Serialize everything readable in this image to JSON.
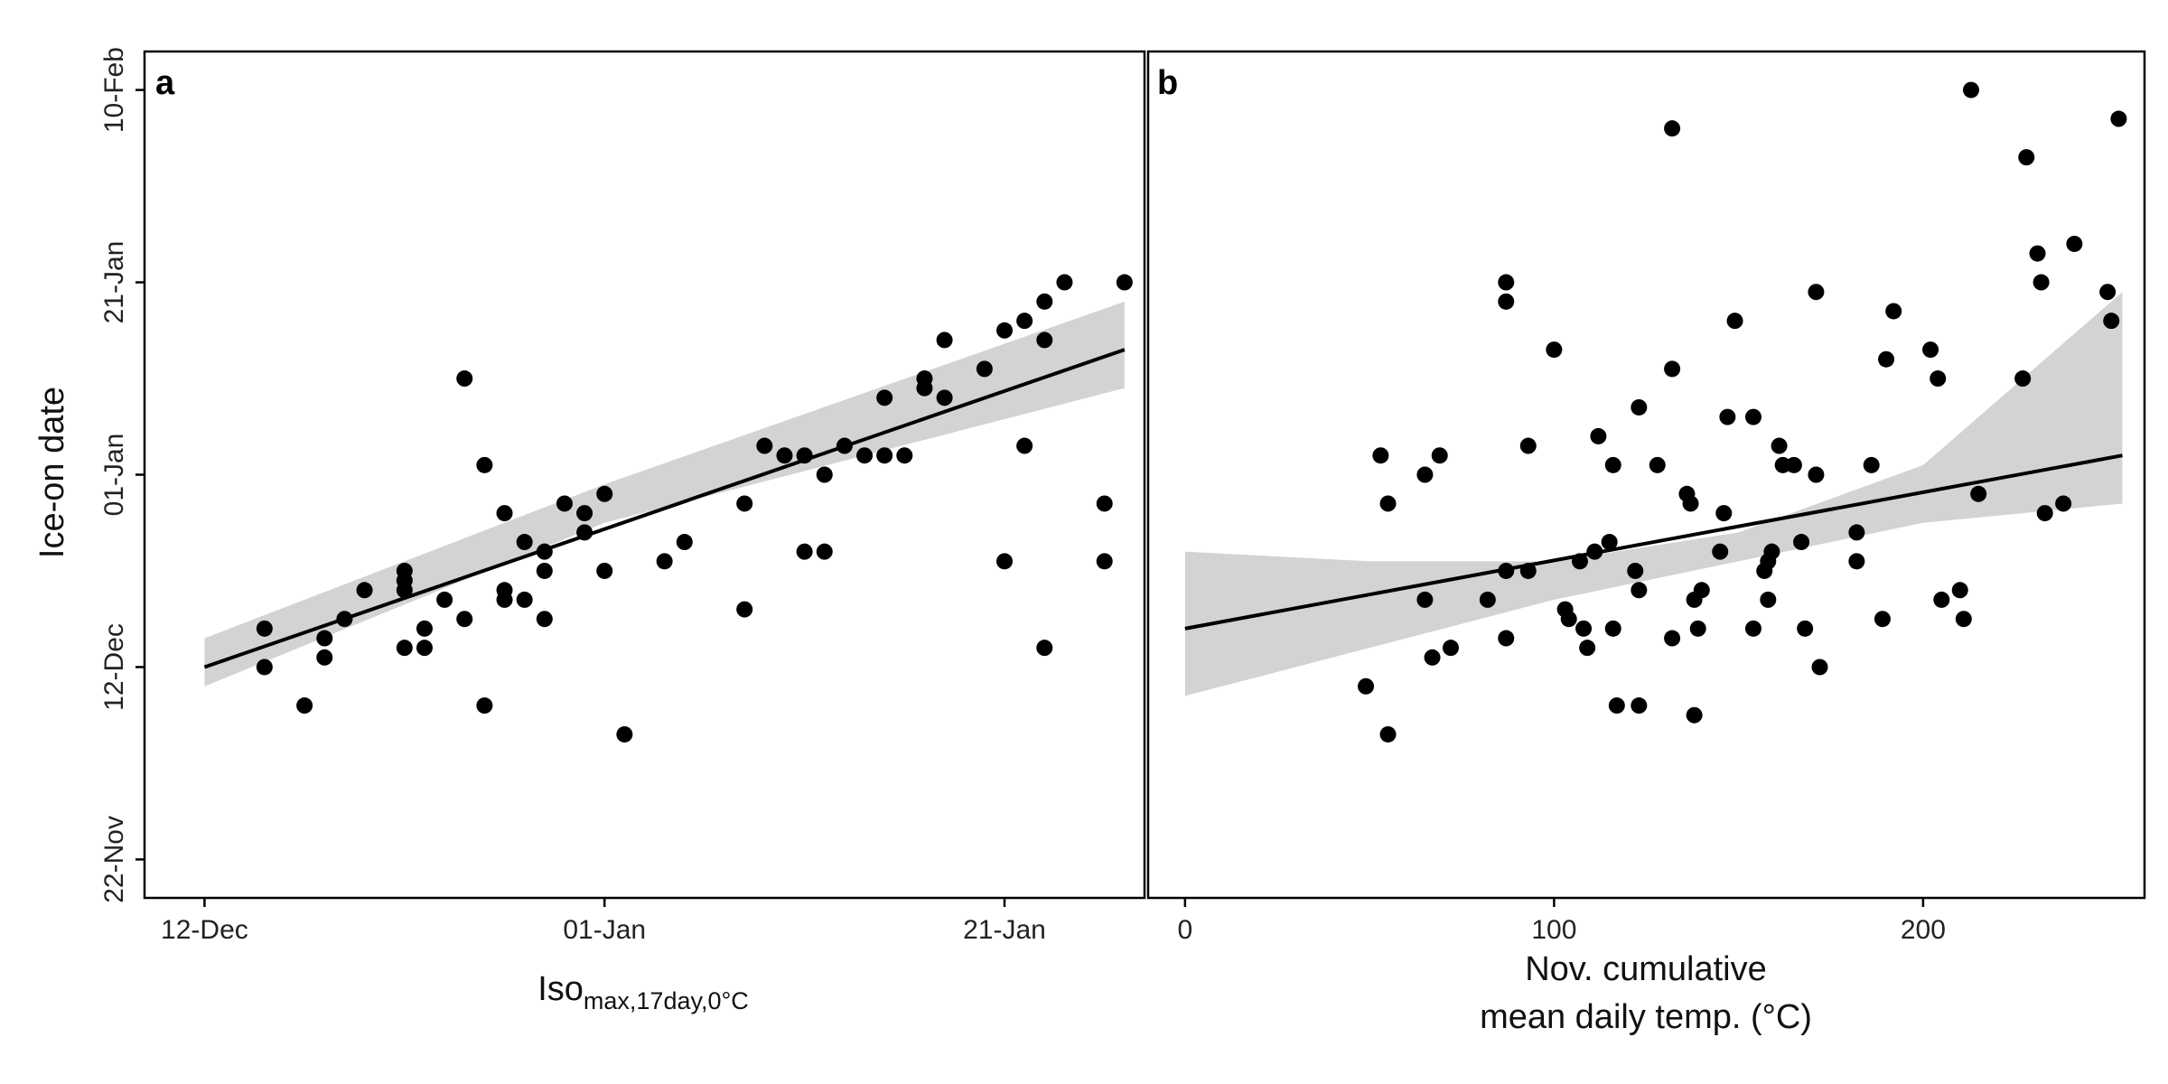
{
  "colors": {
    "points": "#000000",
    "fit_line": "#000000",
    "ci_band": "#d3d3d3",
    "frame": "#000000"
  },
  "shared_y_axis": {
    "label": "Ice-on date",
    "ticks": [
      {
        "value": -20,
        "label": "22-Nov"
      },
      {
        "value": 0,
        "label": "12-Dec"
      },
      {
        "value": 20,
        "label": "01-Jan"
      },
      {
        "value": 40,
        "label": "21-Jan"
      },
      {
        "value": 60,
        "label": "10-Feb"
      }
    ],
    "range": [
      -24,
      64
    ]
  },
  "chart_data": [
    {
      "panel": "a",
      "type": "scatter",
      "xlabel_main": "Iso",
      "xlabel_sub": "max,17day,0°C",
      "x_unit_note": "date",
      "xlim": [
        "2019-12-09",
        "2020-01-28"
      ],
      "ylim": [
        "2019-11-18",
        "2020-02-14"
      ],
      "x_ticks": [
        {
          "value": "2019-12-12",
          "label": "12-Dec"
        },
        {
          "value": "2020-01-01",
          "label": "01-Jan"
        },
        {
          "value": "2020-01-21",
          "label": "21-Jan"
        }
      ],
      "points": [
        {
          "x": "2019-12-15",
          "y": "2019-12-16"
        },
        {
          "x": "2019-12-15",
          "y": "2019-12-12"
        },
        {
          "x": "2019-12-17",
          "y": "2019-12-08"
        },
        {
          "x": "2019-12-18",
          "y": "2019-12-15"
        },
        {
          "x": "2019-12-18",
          "y": "2019-12-13"
        },
        {
          "x": "2019-12-19",
          "y": "2019-12-17"
        },
        {
          "x": "2019-12-20",
          "y": "2019-12-20"
        },
        {
          "x": "2019-12-22",
          "y": "2019-12-21"
        },
        {
          "x": "2019-12-22",
          "y": "2019-12-22"
        },
        {
          "x": "2019-12-22",
          "y": "2019-12-20"
        },
        {
          "x": "2019-12-22",
          "y": "2019-12-14"
        },
        {
          "x": "2019-12-23",
          "y": "2019-12-16"
        },
        {
          "x": "2019-12-23",
          "y": "2019-12-14"
        },
        {
          "x": "2019-12-24",
          "y": "2019-12-19"
        },
        {
          "x": "2019-12-25",
          "y": "2020-01-11"
        },
        {
          "x": "2019-12-25",
          "y": "2019-12-17"
        },
        {
          "x": "2019-12-26",
          "y": "2020-01-02"
        },
        {
          "x": "2019-12-26",
          "y": "2019-12-08"
        },
        {
          "x": "2019-12-27",
          "y": "2019-12-28"
        },
        {
          "x": "2019-12-27",
          "y": "2019-12-20"
        },
        {
          "x": "2019-12-27",
          "y": "2019-12-19"
        },
        {
          "x": "2019-12-28",
          "y": "2019-12-25"
        },
        {
          "x": "2019-12-28",
          "y": "2019-12-19"
        },
        {
          "x": "2019-12-29",
          "y": "2019-12-24"
        },
        {
          "x": "2019-12-29",
          "y": "2019-12-22"
        },
        {
          "x": "2019-12-29",
          "y": "2019-12-17"
        },
        {
          "x": "2019-12-30",
          "y": "2019-12-29"
        },
        {
          "x": "2019-12-31",
          "y": "2019-12-28"
        },
        {
          "x": "2019-12-31",
          "y": "2019-12-26"
        },
        {
          "x": "2020-01-01",
          "y": "2019-12-30"
        },
        {
          "x": "2020-01-01",
          "y": "2019-12-22"
        },
        {
          "x": "2020-01-02",
          "y": "2019-12-05"
        },
        {
          "x": "2020-01-04",
          "y": "2019-12-23"
        },
        {
          "x": "2020-01-05",
          "y": "2019-12-25"
        },
        {
          "x": "2020-01-08",
          "y": "2019-12-29"
        },
        {
          "x": "2020-01-08",
          "y": "2019-12-18"
        },
        {
          "x": "2020-01-09",
          "y": "2020-01-04"
        },
        {
          "x": "2020-01-10",
          "y": "2020-01-03"
        },
        {
          "x": "2020-01-11",
          "y": "2020-01-03"
        },
        {
          "x": "2020-01-11",
          "y": "2019-12-24"
        },
        {
          "x": "2020-01-12",
          "y": "2020-01-01"
        },
        {
          "x": "2020-01-12",
          "y": "2019-12-24"
        },
        {
          "x": "2020-01-13",
          "y": "2020-01-04"
        },
        {
          "x": "2020-01-14",
          "y": "2020-01-03"
        },
        {
          "x": "2020-01-15",
          "y": "2020-01-09"
        },
        {
          "x": "2020-01-15",
          "y": "2020-01-03"
        },
        {
          "x": "2020-01-16",
          "y": "2020-01-03"
        },
        {
          "x": "2020-01-17",
          "y": "2020-01-11"
        },
        {
          "x": "2020-01-17",
          "y": "2020-01-10"
        },
        {
          "x": "2020-01-18",
          "y": "2020-01-15"
        },
        {
          "x": "2020-01-18",
          "y": "2020-01-09"
        },
        {
          "x": "2020-01-20",
          "y": "2020-01-12"
        },
        {
          "x": "2020-01-21",
          "y": "2020-01-16"
        },
        {
          "x": "2020-01-21",
          "y": "2019-12-23"
        },
        {
          "x": "2020-01-22",
          "y": "2020-01-17"
        },
        {
          "x": "2020-01-22",
          "y": "2020-01-04"
        },
        {
          "x": "2020-01-23",
          "y": "2020-01-19"
        },
        {
          "x": "2020-01-23",
          "y": "2019-12-14"
        },
        {
          "x": "2020-01-23",
          "y": "2020-01-15"
        },
        {
          "x": "2020-01-24",
          "y": "2020-01-21"
        },
        {
          "x": "2020-01-26",
          "y": "2019-12-29"
        },
        {
          "x": "2020-01-26",
          "y": "2019-12-23"
        },
        {
          "x": "2020-01-27",
          "y": "2020-01-21"
        }
      ],
      "fit_line": {
        "x": [
          "2019-12-12",
          "2020-01-27"
        ],
        "y": [
          "2019-12-12",
          "2020-01-14"
        ]
      },
      "ci_band": {
        "x": [
          "2019-12-12",
          "2020-01-01",
          "2020-01-27"
        ],
        "upper": [
          "2019-12-15",
          "2019-12-31",
          "2020-01-19"
        ],
        "lower": [
          "2019-12-10",
          "2019-12-27",
          "2020-01-10"
        ]
      }
    },
    {
      "panel": "b",
      "type": "scatter",
      "xlabel_line1": "Nov. cumulative",
      "xlabel_line2": "mean daily temp. (°C)",
      "xlim": [
        -10,
        260
      ],
      "ylim": [
        "2019-11-18",
        "2020-02-14"
      ],
      "x_ticks": [
        {
          "value": 0,
          "label": "0"
        },
        {
          "value": 100,
          "label": "100"
        },
        {
          "value": 200,
          "label": "200"
        }
      ],
      "points": [
        {
          "x": 49,
          "y": "2019-12-10"
        },
        {
          "x": 53,
          "y": "2020-01-03"
        },
        {
          "x": 55,
          "y": "2019-12-05"
        },
        {
          "x": 55,
          "y": "2019-12-29"
        },
        {
          "x": 65,
          "y": "2019-12-19"
        },
        {
          "x": 65,
          "y": "2020-01-01"
        },
        {
          "x": 67,
          "y": "2019-12-13"
        },
        {
          "x": 69,
          "y": "2020-01-03"
        },
        {
          "x": 72,
          "y": "2019-12-14"
        },
        {
          "x": 82,
          "y": "2019-12-19"
        },
        {
          "x": 87,
          "y": "2020-01-21"
        },
        {
          "x": 87,
          "y": "2020-01-19"
        },
        {
          "x": 87,
          "y": "2019-12-22"
        },
        {
          "x": 87,
          "y": "2019-12-15"
        },
        {
          "x": 93,
          "y": "2020-01-04"
        },
        {
          "x": 93,
          "y": "2019-12-22"
        },
        {
          "x": 100,
          "y": "2020-01-14"
        },
        {
          "x": 103,
          "y": "2019-12-18"
        },
        {
          "x": 104,
          "y": "2019-12-17"
        },
        {
          "x": 107,
          "y": "2019-12-23"
        },
        {
          "x": 108,
          "y": "2019-12-16"
        },
        {
          "x": 109,
          "y": "2019-12-14"
        },
        {
          "x": 111,
          "y": "2019-12-24"
        },
        {
          "x": 112,
          "y": "2020-01-05"
        },
        {
          "x": 115,
          "y": "2019-12-25"
        },
        {
          "x": 116,
          "y": "2020-01-02"
        },
        {
          "x": 116,
          "y": "2019-12-16"
        },
        {
          "x": 117,
          "y": "2019-12-08"
        },
        {
          "x": 122,
          "y": "2019-12-22"
        },
        {
          "x": 123,
          "y": "2020-01-08"
        },
        {
          "x": 123,
          "y": "2019-12-20"
        },
        {
          "x": 123,
          "y": "2019-12-08"
        },
        {
          "x": 128,
          "y": "2020-01-02"
        },
        {
          "x": 132,
          "y": "2020-02-06"
        },
        {
          "x": 132,
          "y": "2020-01-12"
        },
        {
          "x": 132,
          "y": "2019-12-15"
        },
        {
          "x": 136,
          "y": "2019-12-30"
        },
        {
          "x": 137,
          "y": "2019-12-29"
        },
        {
          "x": 138,
          "y": "2019-12-19"
        },
        {
          "x": 138,
          "y": "2019-12-07"
        },
        {
          "x": 139,
          "y": "2019-12-16"
        },
        {
          "x": 140,
          "y": "2019-12-20"
        },
        {
          "x": 145,
          "y": "2019-12-24"
        },
        {
          "x": 146,
          "y": "2019-12-28"
        },
        {
          "x": 147,
          "y": "2020-01-07"
        },
        {
          "x": 149,
          "y": "2020-01-17"
        },
        {
          "x": 154,
          "y": "2020-01-07"
        },
        {
          "x": 154,
          "y": "2019-12-16"
        },
        {
          "x": 157,
          "y": "2019-12-22"
        },
        {
          "x": 158,
          "y": "2019-12-23"
        },
        {
          "x": 158,
          "y": "2019-12-19"
        },
        {
          "x": 159,
          "y": "2019-12-24"
        },
        {
          "x": 161,
          "y": "2020-01-04"
        },
        {
          "x": 162,
          "y": "2020-01-02"
        },
        {
          "x": 165,
          "y": "2020-01-02"
        },
        {
          "x": 167,
          "y": "2019-12-25"
        },
        {
          "x": 168,
          "y": "2019-12-16"
        },
        {
          "x": 171,
          "y": "2020-01-20"
        },
        {
          "x": 171,
          "y": "2020-01-01"
        },
        {
          "x": 172,
          "y": "2019-12-12"
        },
        {
          "x": 182,
          "y": "2019-12-26"
        },
        {
          "x": 182,
          "y": "2019-12-23"
        },
        {
          "x": 186,
          "y": "2020-01-02"
        },
        {
          "x": 189,
          "y": "2019-12-17"
        },
        {
          "x": 190,
          "y": "2020-01-13"
        },
        {
          "x": 192,
          "y": "2020-01-18"
        },
        {
          "x": 202,
          "y": "2020-01-14"
        },
        {
          "x": 204,
          "y": "2020-01-11"
        },
        {
          "x": 205,
          "y": "2019-12-19"
        },
        {
          "x": 210,
          "y": "2019-12-20"
        },
        {
          "x": 211,
          "y": "2019-12-17"
        },
        {
          "x": 213,
          "y": "2020-02-10"
        },
        {
          "x": 215,
          "y": "2019-12-30"
        },
        {
          "x": 227,
          "y": "2020-01-11"
        },
        {
          "x": 228,
          "y": "2020-02-03"
        },
        {
          "x": 231,
          "y": "2020-01-24"
        },
        {
          "x": 232,
          "y": "2020-01-21"
        },
        {
          "x": 233,
          "y": "2019-12-28"
        },
        {
          "x": 238,
          "y": "2019-12-29"
        },
        {
          "x": 241,
          "y": "2020-01-25"
        },
        {
          "x": 250,
          "y": "2020-01-20"
        },
        {
          "x": 251,
          "y": "2020-01-17"
        },
        {
          "x": 253,
          "y": "2020-02-07"
        }
      ],
      "fit_line": {
        "x": [
          0,
          254
        ],
        "y": [
          "2019-12-16",
          "2020-01-03"
        ]
      },
      "ci_band": {
        "x": [
          0,
          50,
          100,
          150,
          200,
          254
        ],
        "upper": [
          "2019-12-24",
          "2019-12-23",
          "2019-12-23",
          "2019-12-26",
          "2020-01-02",
          "2020-01-20"
        ],
        "lower": [
          "2019-12-09",
          "2019-12-14",
          "2019-12-19",
          "2019-12-23",
          "2019-12-27",
          "2019-12-29"
        ]
      }
    }
  ],
  "axis_text": {
    "a_x_main": "Iso",
    "a_x_sub": "max,17day,0°C",
    "b_x_line1": "Nov. cumulative",
    "b_x_line2": "mean daily temp. (°C)"
  }
}
